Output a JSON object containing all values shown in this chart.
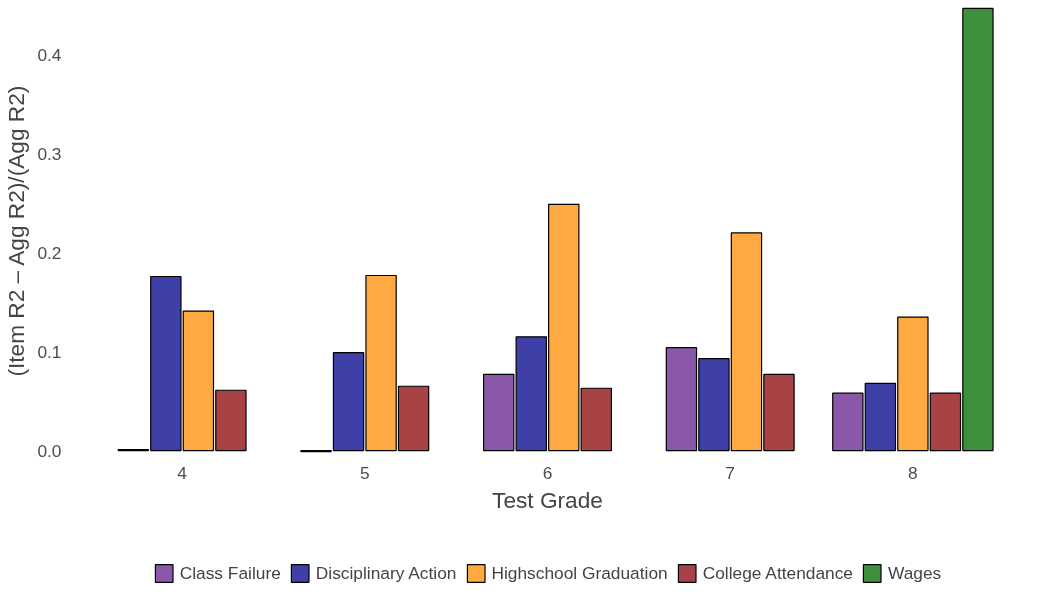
{
  "chart_data": {
    "type": "bar",
    "xlabel": "Test Grade",
    "ylabel": "(Item R2 – Agg R2)/(Agg R2)",
    "categories": [
      "4",
      "5",
      "6",
      "7",
      "8"
    ],
    "series": [
      {
        "name": "Class Failure",
        "color": "#8b57a8",
        "values": [
          0.001,
          -0.001,
          0.077,
          0.104,
          0.058
        ]
      },
      {
        "name": "Disciplinary Action",
        "color": "#3f3fa8",
        "values": [
          0.176,
          0.099,
          0.115,
          0.093,
          0.068
        ]
      },
      {
        "name": "Highschool Graduation",
        "color": "#ffa943",
        "values": [
          0.141,
          0.177,
          0.249,
          0.22,
          0.135
        ]
      },
      {
        "name": "College Attendance",
        "color": "#a84345",
        "values": [
          0.061,
          0.065,
          0.063,
          0.077,
          0.058
        ]
      },
      {
        "name": "Wages",
        "color": "#3f8f3f",
        "values": [
          null,
          null,
          null,
          null,
          0.447
        ]
      }
    ],
    "ylim": [
      -0.005,
      0.45
    ],
    "yticks": [
      {
        "value": 0,
        "label": "0.0"
      },
      0.1,
      0.2,
      0.3,
      0.4
    ],
    "grid": false,
    "legend": "bottom"
  }
}
